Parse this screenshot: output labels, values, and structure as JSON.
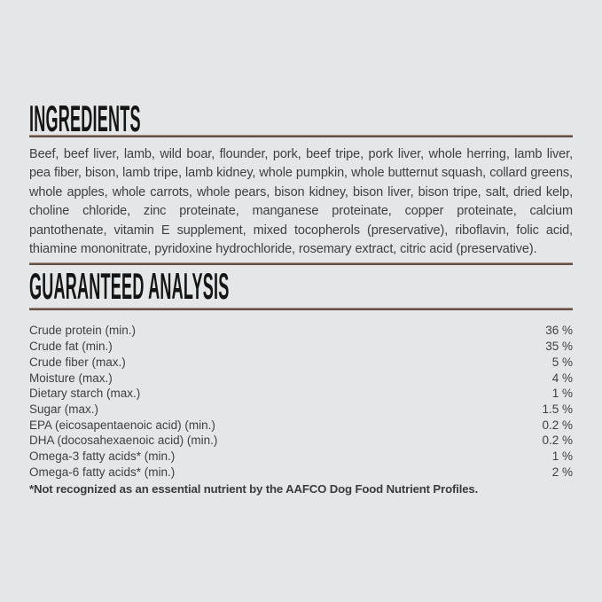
{
  "page": {
    "background_color": "#e5e6e7",
    "rule_color": "#635046",
    "heading_color": "#151515",
    "body_text_color": "#3f4041"
  },
  "ingredients": {
    "heading": "INGREDIENTS",
    "text": "Beef, beef liver, lamb, wild boar, flounder, pork, beef tripe, pork liver, whole herring, lamb liver, pea fiber, bison, lamb tripe, lamb kidney, whole pumpkin, whole butternut squash, collard greens, whole apples, whole carrots, whole pears, bison kidney, bison liver, bison tripe, salt, dried kelp, choline chloride, zinc proteinate, manganese proteinate, copper proteinate, calcium pantothenate, vitamin E supplement, mixed tocopherols (preservative), riboflavin, folic acid, thiamine mononitrate, pyridoxine hydrochloride, rosemary extract, citric acid (preservative)."
  },
  "guaranteed_analysis": {
    "heading": "GUARANTEED ANALYSIS",
    "rows": [
      {
        "label": "Crude protein (min.)",
        "value": "36 %"
      },
      {
        "label": "Crude fat (min.)",
        "value": "35 %"
      },
      {
        "label": "Crude fiber (max.)",
        "value": "5 %"
      },
      {
        "label": "Moisture (max.)",
        "value": "4 %"
      },
      {
        "label": "Dietary starch (max.)",
        "value": "1 %"
      },
      {
        "label": "Sugar (max.)",
        "value": "1.5 %"
      },
      {
        "label": "EPA (eicosapentaenoic acid) (min.)",
        "value": "0.2 %"
      },
      {
        "label": "DHA (docosahexaenoic acid) (min.)",
        "value": "0.2 %"
      },
      {
        "label": "Omega-3 fatty acids* (min.)",
        "value": "1 %"
      },
      {
        "label": "Omega-6 fatty acids* (min.)",
        "value": "2 %"
      }
    ],
    "footnote": "*Not recognized as an essential nutrient by the AAFCO Dog Food Nutrient Profiles."
  }
}
